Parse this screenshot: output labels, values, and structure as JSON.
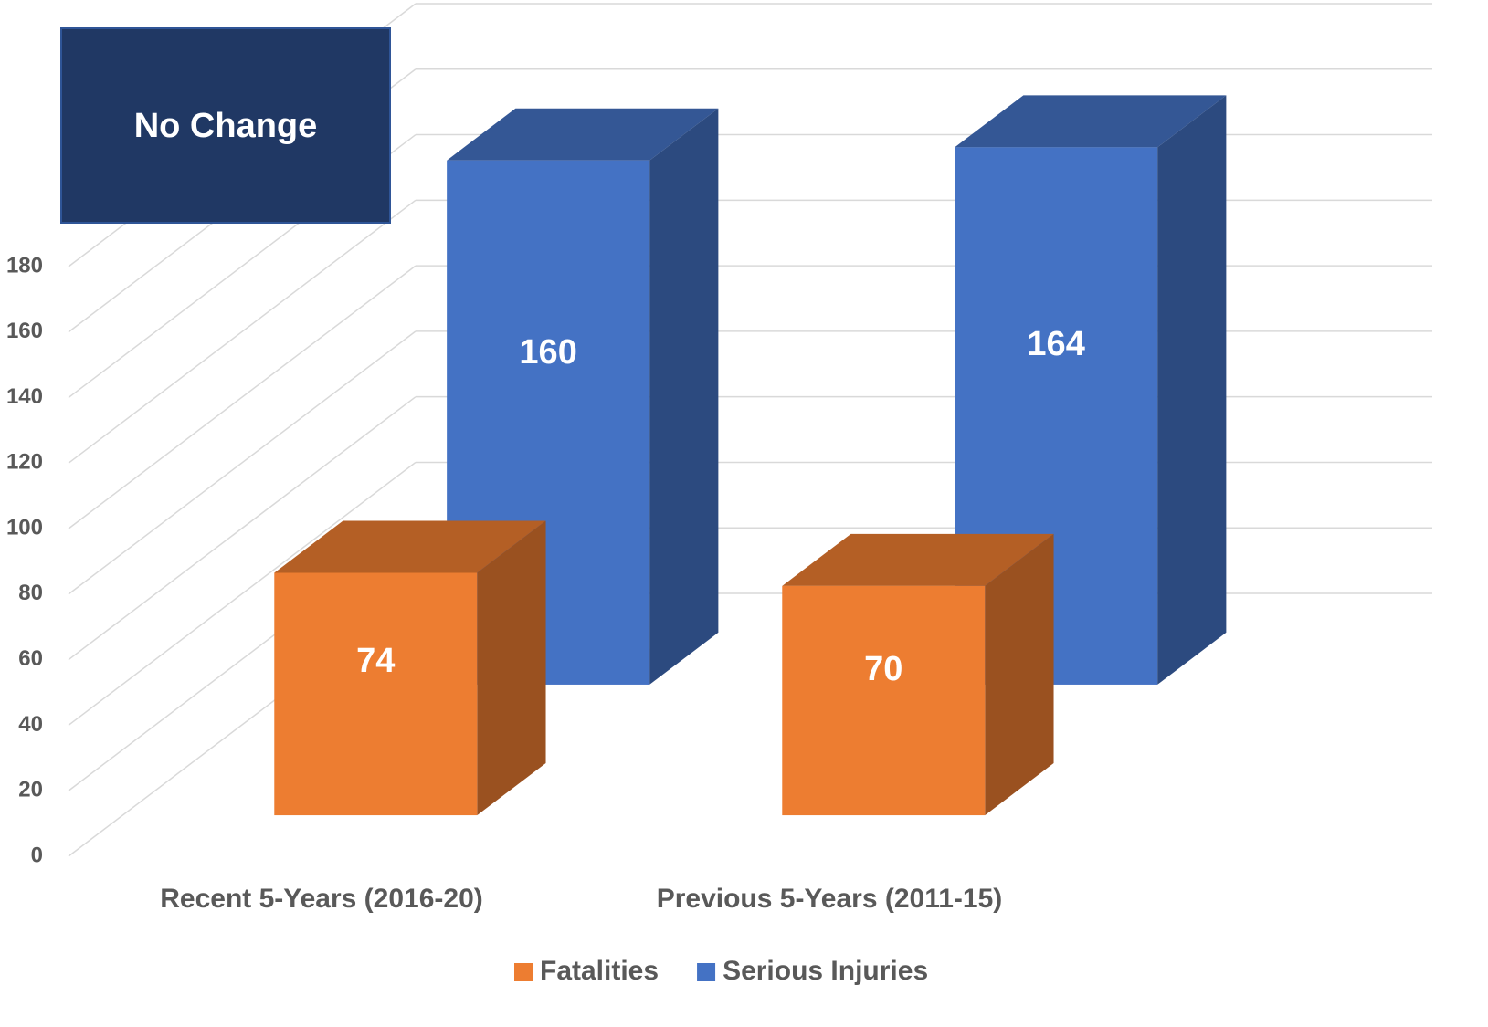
{
  "chart_data": {
    "type": "bar3d",
    "annotation": "No Change",
    "categories": [
      "Recent 5-Years (2016-20)",
      "Previous 5-Years (2011-15)"
    ],
    "series": [
      {
        "name": "Fatalities",
        "color": "#ed7d31",
        "values": [
          74,
          70
        ]
      },
      {
        "name": "Serious Injuries",
        "color": "#4472c4",
        "values": [
          160,
          164
        ]
      }
    ],
    "ylim": [
      0,
      180
    ],
    "yticks": [
      0,
      20,
      40,
      60,
      80,
      100,
      120,
      140,
      160,
      180
    ],
    "grid": true,
    "legend": "bottom"
  }
}
